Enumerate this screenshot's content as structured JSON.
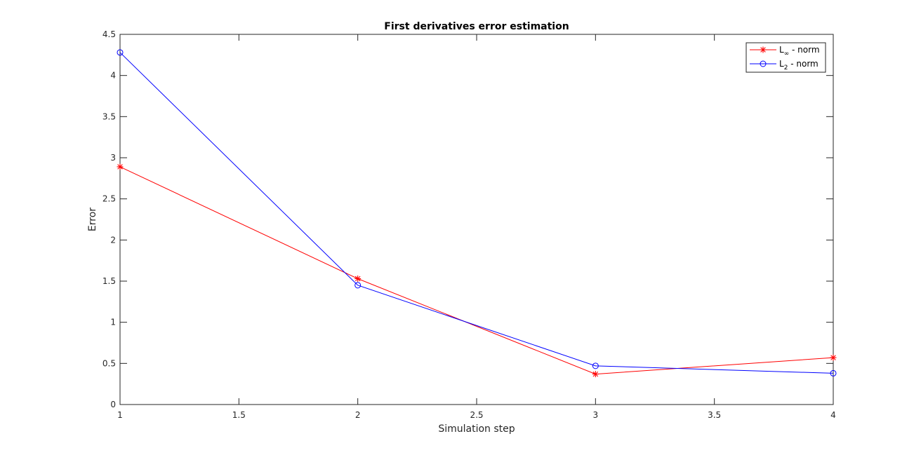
{
  "chart_data": {
    "type": "line",
    "title": "First derivatives error estimation",
    "xlabel": "Simulation step",
    "ylabel": "Error",
    "xlim": [
      1,
      4
    ],
    "ylim": [
      0,
      4.5
    ],
    "x_ticks": [
      "1",
      "1.5",
      "2",
      "2.5",
      "3",
      "3.5",
      "4"
    ],
    "y_ticks": [
      "0",
      "0.5",
      "1",
      "1.5",
      "2",
      "2.5",
      "3",
      "3.5",
      "4",
      "4.5"
    ],
    "grid": false,
    "legend_position": "top-right",
    "series": [
      {
        "name_main": "L",
        "name_sub": "∞",
        "name_suffix": " - norm",
        "color": "#ff0000",
        "marker": "asterisk",
        "x": [
          1,
          2,
          3,
          4
        ],
        "y": [
          2.89,
          1.53,
          0.37,
          0.57
        ]
      },
      {
        "name_main": "L",
        "name_sub": "2",
        "name_suffix": " - norm",
        "color": "#0000ff",
        "marker": "circle",
        "x": [
          1,
          2,
          3,
          4
        ],
        "y": [
          4.28,
          1.45,
          0.47,
          0.38
        ]
      }
    ]
  }
}
